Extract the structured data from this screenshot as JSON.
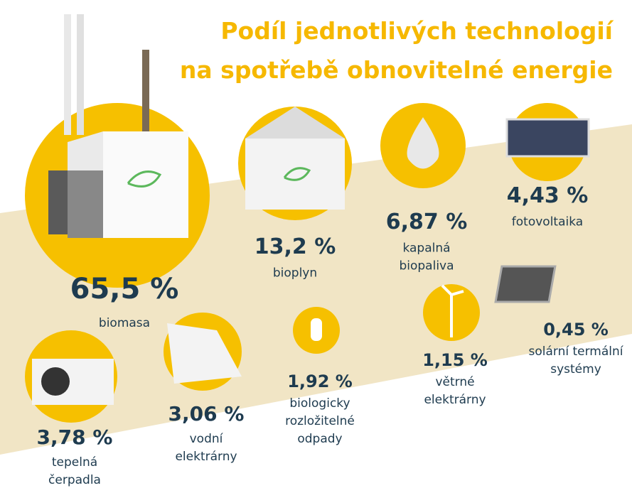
{
  "header": {
    "title": [
      "Podíl jednotlivých technologií",
      "na spotřebě obnovitelné energie"
    ]
  },
  "items": [
    {
      "value": "65,5 %",
      "label": [
        "biomasa"
      ]
    },
    {
      "value": "13,2 %",
      "label": [
        "bioplyn"
      ]
    },
    {
      "value": "6,87 %",
      "label": [
        "kapalná",
        "biopaliva"
      ]
    },
    {
      "value": "4,43 %",
      "label": [
        "fotovoltaika"
      ]
    },
    {
      "value": "0,45 %",
      "label": [
        "solární termální",
        "systémy"
      ]
    },
    {
      "value": "1,15 %",
      "label": [
        "větrné",
        "elektrárny"
      ]
    },
    {
      "value": "1,92 %",
      "label": [
        "biologicky",
        "rozložitelné",
        "odpady"
      ]
    },
    {
      "value": "3,06 %",
      "label": [
        "vodní",
        "elektrárny"
      ]
    },
    {
      "value": "3,78 %",
      "label": [
        "tepelná",
        "čerpadla"
      ]
    }
  ]
}
